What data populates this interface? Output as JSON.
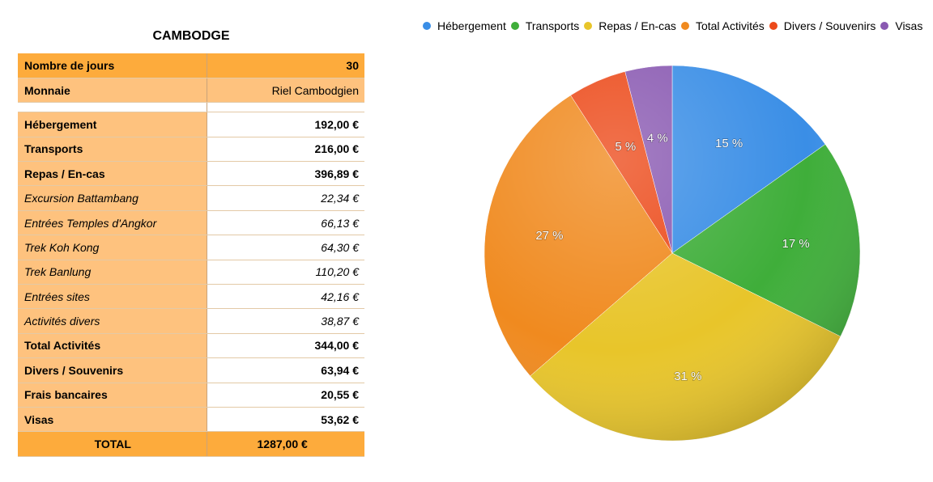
{
  "table": {
    "title": "CAMBODGE",
    "days_label": "Nombre de jours",
    "days_value": "30",
    "currency_label": "Monnaie",
    "currency_value": "Riel Cambodgien",
    "rows": [
      {
        "label": "Hébergement",
        "value": "192,00 €"
      },
      {
        "label": "Transports",
        "value": "216,00 €"
      },
      {
        "label": "Repas / En-cas",
        "value": "396,89 €"
      },
      {
        "label": "Excursion Battambang",
        "value": "22,34 €"
      },
      {
        "label": "Entrées Temples d'Angkor",
        "value": "66,13 €"
      },
      {
        "label": "Trek Koh Kong",
        "value": "64,30 €"
      },
      {
        "label": "Trek Banlung",
        "value": "110,20 €"
      },
      {
        "label": "Entrées sites",
        "value": "42,16 €"
      },
      {
        "label": "Activités divers",
        "value": "38,87 €"
      },
      {
        "label": "Total Activités",
        "value": "344,00 €"
      },
      {
        "label": "Divers / Souvenirs",
        "value": "63,94 €"
      },
      {
        "label": "Frais bancaires",
        "value": "20,55 €"
      },
      {
        "label": "Visas",
        "value": "53,62 €"
      }
    ],
    "total_label": "TOTAL",
    "total_value": "1287,00 €"
  },
  "chart_data": {
    "type": "pie",
    "legend_position": "top",
    "slices": [
      {
        "name": "Hébergement",
        "value": 15,
        "label": "15 %",
        "color": "#3a8ee6"
      },
      {
        "name": "Transports",
        "value": 17,
        "label": "17 %",
        "color": "#3fae3a"
      },
      {
        "name": "Repas / En-cas",
        "value": 31,
        "label": "31 %",
        "color": "#e8c52a"
      },
      {
        "name": "Total Activités",
        "value": 27,
        "label": "27 %",
        "color": "#f08a1f"
      },
      {
        "name": "Divers / Souvenirs",
        "value": 5,
        "label": "5 %",
        "color": "#ec4a1a"
      },
      {
        "name": "Visas",
        "value": 4,
        "label": "4 %",
        "color": "#8a5ab2"
      }
    ]
  }
}
